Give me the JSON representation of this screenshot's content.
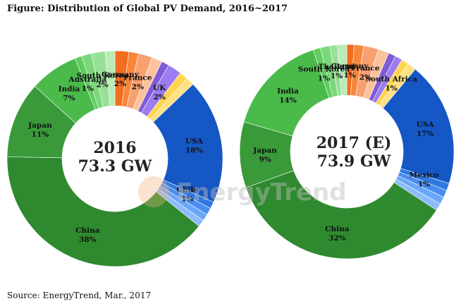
{
  "title": "Figure: Distribution of Global PV Demand, 2016~2017",
  "source": "Source: EnergyTrend, Mar., 2017",
  "watermark": "EnergyTrend",
  "chart_data": [
    {
      "type": "pie",
      "center_line1": "2016",
      "center_line2": "73.3 GW",
      "slices": [
        {
          "name": "Germany",
          "value": 2,
          "color": "#f36d1e",
          "label": "Germany",
          "pct": "2%"
        },
        {
          "name": "",
          "value": 1.4,
          "color": "#f6873a"
        },
        {
          "name": "France",
          "value": 2,
          "color": "#f8a070",
          "label": "France",
          "pct": "2%"
        },
        {
          "name": "",
          "value": 1.5,
          "color": "#fbc39c"
        },
        {
          "name": "",
          "value": 1.1,
          "color": "#7f5bd8"
        },
        {
          "name": "UK",
          "value": 2,
          "color": "#9c7cf0",
          "label": "UK",
          "pct": "2%"
        },
        {
          "name": "",
          "value": 1.2,
          "color": "#ffd54f"
        },
        {
          "name": "",
          "value": 1.2,
          "color": "#ffe082"
        },
        {
          "name": "USA",
          "value": 18,
          "color": "#1657c6",
          "label": "USA",
          "pct": "18%"
        },
        {
          "name": "Chile",
          "value": 1,
          "color": "#2f78e0",
          "label": "Chile",
          "pct": "1%"
        },
        {
          "name": "",
          "value": 1,
          "color": "#4a8df0"
        },
        {
          "name": "",
          "value": 1,
          "color": "#6aa6f8"
        },
        {
          "name": "",
          "value": 1,
          "color": "#8dbcfa"
        },
        {
          "name": "China",
          "value": 38,
          "color": "#2f8a2f",
          "label": "China",
          "pct": "38%"
        },
        {
          "name": "Japan",
          "value": 11,
          "color": "#3a9a3a",
          "label": "Japan",
          "pct": "11%"
        },
        {
          "name": "India",
          "value": 7,
          "color": "#4aba4a",
          "label": "India",
          "pct": "7%"
        },
        {
          "name": "Australia",
          "value": 1,
          "color": "#60cc60",
          "label": "Australia",
          "pct": "1%"
        },
        {
          "name": "",
          "value": 1.4,
          "color": "#7ad77a"
        },
        {
          "name": "South Korea",
          "value": 2,
          "color": "#98e098",
          "label": "South Korea",
          "pct": "2%"
        },
        {
          "name": "",
          "value": 1.4,
          "color": "#b9ebb9"
        }
      ]
    },
    {
      "type": "pie",
      "center_line1": "2017 (E)",
      "center_line2": "73.9 GW",
      "slices": [
        {
          "name": "Germany",
          "value": 1,
          "color": "#f36d1e",
          "label": "Germany",
          "pct": "1%"
        },
        {
          "name": "",
          "value": 1.3,
          "color": "#f6873a"
        },
        {
          "name": "France",
          "value": 2,
          "color": "#f8a070",
          "label": "France",
          "pct": "2%"
        },
        {
          "name": "",
          "value": 1.5,
          "color": "#fbc39c"
        },
        {
          "name": "",
          "value": 1,
          "color": "#7f5bd8"
        },
        {
          "name": "",
          "value": 1,
          "color": "#9c7cf0"
        },
        {
          "name": "South Africa",
          "value": 1,
          "color": "#ffd54f",
          "label": "South Africa",
          "pct": "1%"
        },
        {
          "name": "",
          "value": 1.2,
          "color": "#ffe082"
        },
        {
          "name": "USA",
          "value": 17,
          "color": "#1657c6",
          "label": "USA",
          "pct": "17%"
        },
        {
          "name": "Mexico",
          "value": 1,
          "color": "#2f78e0",
          "label": "Mexico",
          "pct": "1%"
        },
        {
          "name": "",
          "value": 1,
          "color": "#4a8df0"
        },
        {
          "name": "",
          "value": 1,
          "color": "#6aa6f8"
        },
        {
          "name": "",
          "value": 1,
          "color": "#8dbcfa"
        },
        {
          "name": "China",
          "value": 32,
          "color": "#2f8a2f",
          "label": "China",
          "pct": "32%"
        },
        {
          "name": "Japan",
          "value": 9,
          "color": "#3a9a3a",
          "label": "Japan",
          "pct": "9%"
        },
        {
          "name": "India",
          "value": 14,
          "color": "#4aba4a",
          "label": "India",
          "pct": "14%"
        },
        {
          "name": "South Korea",
          "value": 1,
          "color": "#60cc60",
          "label": "South Korea",
          "pct": "1%"
        },
        {
          "name": "",
          "value": 1.3,
          "color": "#7ad77a"
        },
        {
          "name": "Thailand",
          "value": 1,
          "color": "#98e098",
          "label": "Thailand",
          "pct": "1%"
        },
        {
          "name": "",
          "value": 1.3,
          "color": "#b9ebb9"
        }
      ]
    }
  ]
}
